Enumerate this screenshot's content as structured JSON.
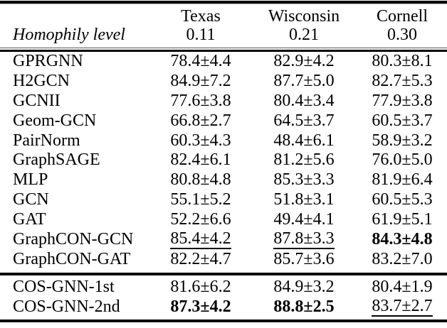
{
  "colors": {
    "background": "#ffffff",
    "text": "#000000",
    "rule": "#000000"
  },
  "table": {
    "header": {
      "row_label": "Homophily level",
      "columns": [
        {
          "name": "Texas",
          "homophily": "0.11"
        },
        {
          "name": "Wisconsin",
          "homophily": "0.21"
        },
        {
          "name": "Cornell",
          "homophily": "0.30"
        }
      ]
    },
    "group1": [
      {
        "model": "GPRGNN",
        "texas": {
          "v": "78.4±4.4"
        },
        "wisconsin": {
          "v": "82.9±4.2"
        },
        "cornell": {
          "v": "80.3±8.1"
        }
      },
      {
        "model": "H2GCN",
        "texas": {
          "v": "84.9±7.2"
        },
        "wisconsin": {
          "v": "87.7±5.0"
        },
        "cornell": {
          "v": "82.7±5.3"
        }
      },
      {
        "model": "GCNII",
        "texas": {
          "v": "77.6±3.8"
        },
        "wisconsin": {
          "v": "80.4±3.4"
        },
        "cornell": {
          "v": "77.9±3.8"
        }
      },
      {
        "model": "Geom-GCN",
        "texas": {
          "v": "66.8±2.7"
        },
        "wisconsin": {
          "v": "64.5±3.7"
        },
        "cornell": {
          "v": "60.5±3.7"
        }
      },
      {
        "model": "PairNorm",
        "texas": {
          "v": "60.3±4.3"
        },
        "wisconsin": {
          "v": "48.4±6.1"
        },
        "cornell": {
          "v": "58.9±3.2"
        }
      },
      {
        "model": "GraphSAGE",
        "texas": {
          "v": "82.4±6.1"
        },
        "wisconsin": {
          "v": "81.2±5.6"
        },
        "cornell": {
          "v": "76.0±5.0"
        }
      },
      {
        "model": "MLP",
        "texas": {
          "v": "80.8±4.8"
        },
        "wisconsin": {
          "v": "85.3±3.3"
        },
        "cornell": {
          "v": "81.9±6.4"
        }
      },
      {
        "model": "GCN",
        "texas": {
          "v": "55.1±5.2"
        },
        "wisconsin": {
          "v": "51.8±3.1"
        },
        "cornell": {
          "v": "60.5±5.3"
        }
      },
      {
        "model": "GAT",
        "texas": {
          "v": "52.2±6.6"
        },
        "wisconsin": {
          "v": "49.4±4.1"
        },
        "cornell": {
          "v": "61.9±5.1"
        }
      },
      {
        "model": "GraphCON-GCN",
        "texas": {
          "v": "85.4±4.2",
          "em": "underline"
        },
        "wisconsin": {
          "v": "87.8±3.3",
          "em": "underline"
        },
        "cornell": {
          "v": "84.3±4.8",
          "em": "bold"
        }
      },
      {
        "model": "GraphCON-GAT",
        "texas": {
          "v": "82.2±4.7"
        },
        "wisconsin": {
          "v": "85.7±3.6"
        },
        "cornell": {
          "v": "83.2±7.0"
        }
      }
    ],
    "group2": [
      {
        "model": "COS-GNN-1st",
        "texas": {
          "v": "81.6±6.2"
        },
        "wisconsin": {
          "v": "84.9±3.2"
        },
        "cornell": {
          "v": "80.4±1.9"
        }
      },
      {
        "model": "COS-GNN-2nd",
        "texas": {
          "v": "87.3±4.2",
          "em": "bold"
        },
        "wisconsin": {
          "v": "88.8±2.5",
          "em": "bold"
        },
        "cornell": {
          "v": "83.7±2.7",
          "em": "underline"
        }
      }
    ]
  }
}
